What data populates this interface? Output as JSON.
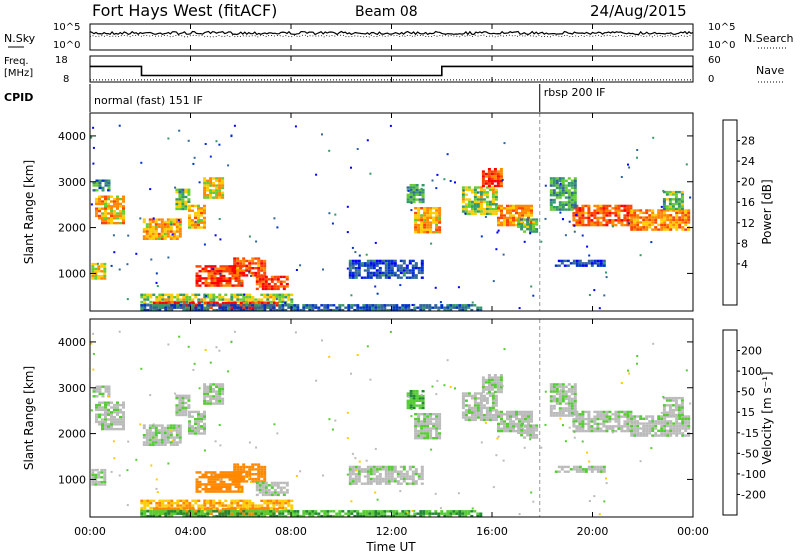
{
  "header": {
    "station": "Fort Hays West (fitACF)",
    "beam": "Beam 08",
    "date": "24/Aug/2015"
  },
  "panels": {
    "nsky": {
      "label": "N.Sky",
      "ticks": [
        "10^5",
        "10^0"
      ],
      "right_label": "N.Search",
      "right_ticks": [
        "10^5",
        "10^0"
      ]
    },
    "freq": {
      "label_line1": "Freq.",
      "label_line2": "[MHz]",
      "ticks": [
        "18",
        "8"
      ],
      "right_label": "Nave",
      "right_ticks": [
        "60",
        "0"
      ]
    },
    "cpid": {
      "label": "CPID",
      "modes": [
        "normal (fast) 151 IF",
        "rbsp 200 IF"
      ]
    }
  },
  "colorbars": {
    "power": {
      "title": "Power [dB]",
      "ticks": [
        "28",
        "24",
        "20",
        "16",
        "12",
        "8",
        "4"
      ],
      "colors": [
        "#ff0000",
        "#ff4400",
        "#ff8800",
        "#ffcc00",
        "#66cc33",
        "#339966",
        "#336699",
        "#0033cc",
        "#0000ff"
      ]
    },
    "velocity": {
      "title": "Velocity [m s⁻¹]",
      "ticks": [
        "200",
        "100",
        "50",
        "15",
        "-15",
        "-50",
        "-100",
        "-200"
      ],
      "colors": [
        "#2233aa",
        "#3366cc",
        "#228833",
        "#55cc33",
        "#bbbbbb",
        "#ffcc00",
        "#ff8800",
        "#ff5500",
        "#ff0000"
      ]
    }
  },
  "chart_data": {
    "type": "heatmap",
    "xlabel": "Time UT",
    "ylabel": "Slant Range [km]",
    "x_ticks": [
      "00:00",
      "04:00",
      "08:00",
      "12:00",
      "16:00",
      "20:00",
      "00:00"
    ],
    "y_ticks": [
      1000,
      2000,
      3000,
      4000
    ],
    "xlim": [
      0,
      24
    ],
    "ylim": [
      180,
      4500
    ],
    "cpid_change_hour": 17.9,
    "freq_segments": [
      {
        "start": 0,
        "end": 2.05,
        "mhz": 14
      },
      {
        "start": 2.05,
        "end": 14.0,
        "mhz": 10.5
      },
      {
        "start": 14.0,
        "end": 24,
        "mhz": 14
      }
    ],
    "nave_level": 5,
    "echo_regions": [
      {
        "t": 0.2,
        "t2": 1.35,
        "r": 2100,
        "r2": 2700,
        "power": 20,
        "velocity": 10
      },
      {
        "t": 0.1,
        "t2": 0.8,
        "r": 2800,
        "r2": 3050,
        "power": 10,
        "velocity": 10
      },
      {
        "t": 2.1,
        "t2": 3.55,
        "r": 1780,
        "r2": 2200,
        "power": 20,
        "velocity": 10
      },
      {
        "t": 3.4,
        "t2": 3.9,
        "r": 2400,
        "r2": 2850,
        "power": 14,
        "velocity": 10
      },
      {
        "t": 3.9,
        "t2": 4.6,
        "r": 2000,
        "r2": 2500,
        "power": 20,
        "velocity": 10
      },
      {
        "t": 4.5,
        "t2": 5.3,
        "r": 2650,
        "r2": 3100,
        "power": 18,
        "velocity": 10
      },
      {
        "t": 0.05,
        "t2": 0.6,
        "r": 870,
        "r2": 1230,
        "power": 18,
        "velocity": 10
      },
      {
        "t": 4.2,
        "t2": 6.0,
        "r": 750,
        "r2": 1180,
        "power": 26,
        "velocity": -60
      },
      {
        "t": 5.7,
        "t2": 7.0,
        "r": 950,
        "r2": 1350,
        "power": 24,
        "velocity": -60
      },
      {
        "t": 6.6,
        "t2": 7.8,
        "r": 650,
        "r2": 950,
        "power": 26,
        "velocity": 10
      },
      {
        "t": 2.0,
        "t2": 8.0,
        "r": 330,
        "r2": 560,
        "power": 16,
        "velocity": -30
      },
      {
        "t": 2.5,
        "t2": 7.5,
        "r": 230,
        "r2": 380,
        "power": 27,
        "velocity": -40
      },
      {
        "t": 2.0,
        "t2": 15.5,
        "r": 190,
        "r2": 330,
        "power": 8,
        "velocity": 30
      },
      {
        "t": 10.3,
        "t2": 13.2,
        "r": 900,
        "r2": 1300,
        "power": 6,
        "velocity": 10
      },
      {
        "t": 12.9,
        "t2": 13.9,
        "r": 1900,
        "r2": 2450,
        "power": 20,
        "velocity": 10
      },
      {
        "t": 12.6,
        "t2": 13.2,
        "r": 2550,
        "r2": 2950,
        "power": 12,
        "velocity": 30
      },
      {
        "t": 14.8,
        "t2": 16.2,
        "r": 2300,
        "r2": 2900,
        "power": 16,
        "velocity": 10
      },
      {
        "t": 15.6,
        "t2": 16.4,
        "r": 2900,
        "r2": 3300,
        "power": 26,
        "velocity": 10
      },
      {
        "t": 16.2,
        "t2": 17.6,
        "r": 2050,
        "r2": 2500,
        "power": 22,
        "velocity": 10
      },
      {
        "t": 17.0,
        "t2": 17.8,
        "r": 1900,
        "r2": 2200,
        "power": 14,
        "velocity": 10
      },
      {
        "t": 19.2,
        "t2": 21.5,
        "r": 2050,
        "r2": 2500,
        "power": 24,
        "velocity": 10
      },
      {
        "t": 21.5,
        "t2": 23.8,
        "r": 1980,
        "r2": 2400,
        "power": 22,
        "velocity": 10
      },
      {
        "t": 22.8,
        "t2": 23.6,
        "r": 2400,
        "r2": 2800,
        "power": 14,
        "velocity": 10
      },
      {
        "t": 18.3,
        "t2": 19.3,
        "r": 2400,
        "r2": 3100,
        "power": 12,
        "velocity": 10
      },
      {
        "t": 18.5,
        "t2": 20.5,
        "r": 1150,
        "r2": 1300,
        "power": 6,
        "velocity": 10
      }
    ]
  }
}
